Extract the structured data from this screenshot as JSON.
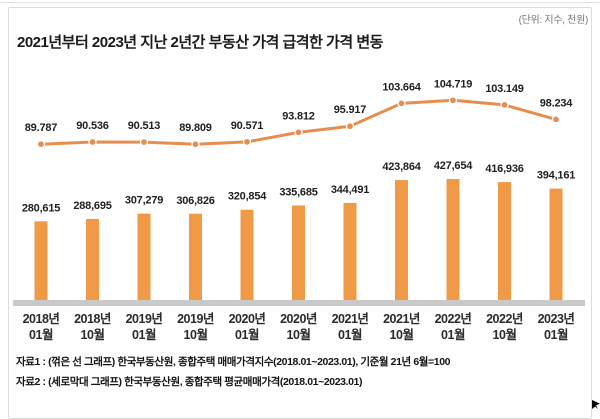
{
  "window": {
    "unit_note": "(단위: 지수, 천원)",
    "title": "2021년부터 2023년 지난 2년간 부동산 가격 급격한 가격 변동",
    "footnotes": [
      "자료1 : (꺾은 선 그래프) 한국부동산원, 종합주택 매매가격지수(2018.01~2023.01), 기준월 21년 6월=100",
      "자료2 : (세로막대 그래프) 한국부동산원, 종합주택 평균매매가격(2018.01~2023.01)"
    ]
  },
  "colors": {
    "bar": "#F09A47",
    "line": "#E58E4E",
    "axis_line": "#C9C9C9",
    "value_label_text": "#1F1F1F"
  },
  "chart_data": {
    "type": "combo",
    "title": "2021년부터 2023년 지난 2년간 부동산 가격 급격한 가격 변동",
    "unit": "(단위: 지수, 천원)",
    "grid": false,
    "legend_position": "none",
    "categories": [
      "2018년 01월",
      "2018년 10월",
      "2019년 01월",
      "2019년 10월",
      "2020년 01월",
      "2020년 10월",
      "2021년 01월",
      "2021년 10월",
      "2022년 01월",
      "2022년 10월",
      "2023년 01월"
    ],
    "series": [
      {
        "name": "종합주택 매매가격지수",
        "type": "line",
        "values": [
          89.787,
          90.536,
          90.513,
          89.809,
          90.571,
          93.812,
          95.917,
          103.664,
          104.719,
          103.149,
          98.234
        ],
        "labels": [
          "89.787",
          "90.536",
          "90.513",
          "89.809",
          "90.571",
          "93.812",
          "95.917",
          "103.664",
          "104.719",
          "103.149",
          "98.234"
        ]
      },
      {
        "name": "종합주택 평균매매가격",
        "type": "bar",
        "values": [
          280615,
          288695,
          307279,
          306826,
          320854,
          335685,
          344491,
          423864,
          427654,
          416936,
          394161
        ],
        "labels": [
          "280,615",
          "288,695",
          "307,279",
          "306,826",
          "320,854",
          "335,685",
          "344,491",
          "423,864",
          "427,654",
          "416,936",
          "394,161"
        ]
      }
    ]
  }
}
